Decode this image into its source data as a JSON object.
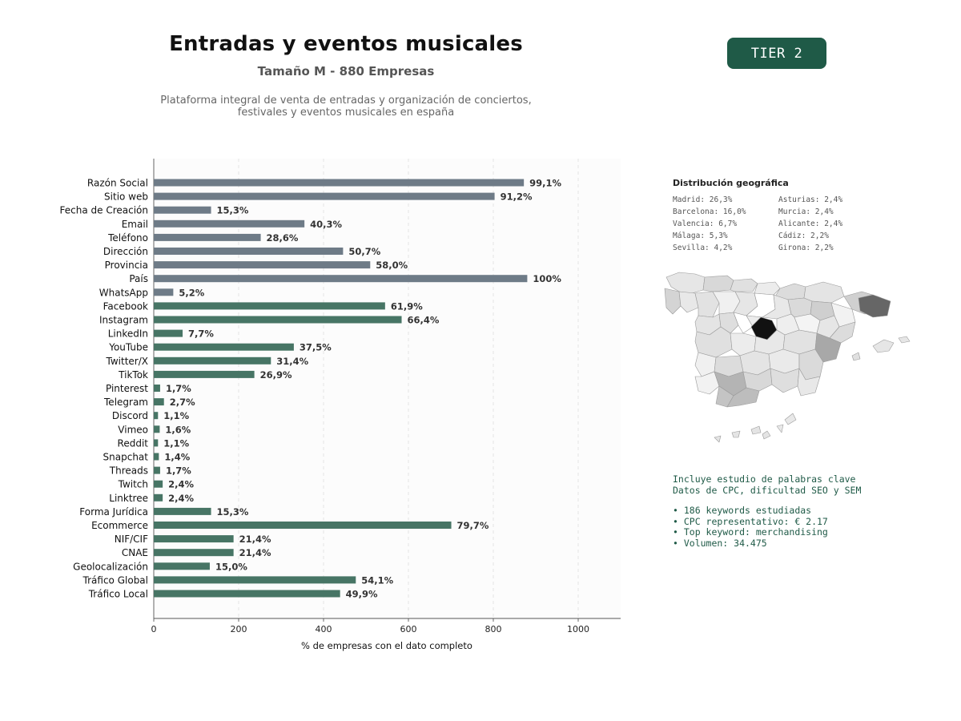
{
  "header": {
    "title": "Entradas y eventos musicales",
    "subtitle": "Tamaño M - 880 Empresas",
    "description_line1": "Plataforma integral de venta de entradas y organización de conciertos,",
    "description_line2": "festivales y eventos musicales en españa"
  },
  "tier_badge": "TIER 2",
  "chart_data": {
    "type": "bar",
    "orientation": "horizontal",
    "xlabel": "% de empresas con el dato completo",
    "xlim": [
      0,
      1100
    ],
    "xticks": [
      0,
      200,
      400,
      600,
      800,
      1000
    ],
    "grid": "vertical dashed",
    "categories": [
      "Razón Social",
      "Sitio web",
      "Fecha de Creación",
      "Email",
      "Teléfono",
      "Dirección",
      "Provincia",
      "País",
      "WhatsApp",
      "Facebook",
      "Instagram",
      "LinkedIn",
      "YouTube",
      "Twitter/X",
      "TikTok",
      "Pinterest",
      "Telegram",
      "Discord",
      "Vimeo",
      "Reddit",
      "Snapchat",
      "Threads",
      "Twitch",
      "Linktree",
      "Forma Jurídica",
      "Ecommerce",
      "NIF/CIF",
      "CNAE",
      "Geolocalización",
      "Tráfico Global",
      "Tráfico Local"
    ],
    "values": [
      872,
      803,
      135,
      355,
      252,
      446,
      510,
      880,
      46,
      545,
      584,
      68,
      330,
      276,
      237,
      15,
      24,
      10,
      14,
      10,
      12,
      15,
      21,
      21,
      135,
      701,
      188,
      188,
      132,
      476,
      439
    ],
    "labels": [
      "99,1%",
      "91,2%",
      "15,3%",
      "40,3%",
      "28,6%",
      "50,7%",
      "58,0%",
      "100%",
      "5,2%",
      "61,9%",
      "66,4%",
      "7,7%",
      "37,5%",
      "31,4%",
      "26,9%",
      "1,7%",
      "2,7%",
      "1,1%",
      "1,6%",
      "1,1%",
      "1,4%",
      "1,7%",
      "2,4%",
      "2,4%",
      "15,3%",
      "79,7%",
      "21,4%",
      "21,4%",
      "15,0%",
      "54,1%",
      "49,9%"
    ],
    "colors": {
      "basic": "#6e7b87",
      "extended": "#477565"
    },
    "basic_count": 9
  },
  "geo": {
    "title": "Distribución geográfica",
    "items": [
      "Madrid: 26,3%",
      "Asturias: 2,4%",
      "Barcelona: 16,0%",
      "Murcia: 2,4%",
      "Valencia: 6,7%",
      "Alicante: 2,4%",
      "Málaga: 5,3%",
      "Cádiz: 2,2%",
      "Sevilla: 4,2%",
      "Girona: 2,2%"
    ]
  },
  "keywords": {
    "line1": "Incluye estudio de palabras clave",
    "line2": "Datos de CPC, dificultad SEO y SEM",
    "bullets": [
      "• 186 keywords estudiadas",
      "• CPC representativo: € 2.17",
      "• Top keyword: merchandising",
      "• Volumen: 34.475"
    ]
  }
}
